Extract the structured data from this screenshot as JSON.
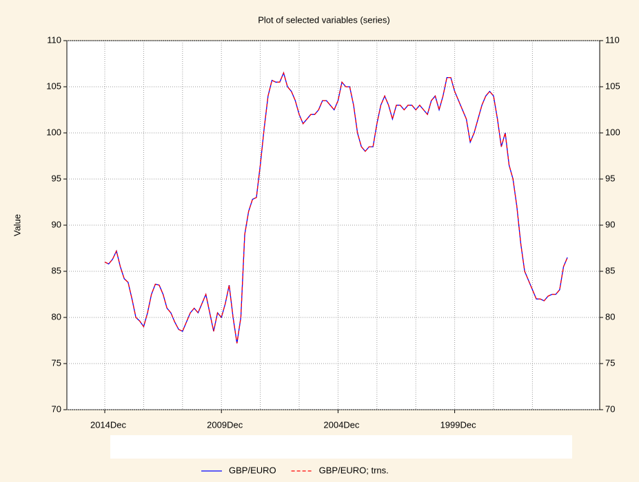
{
  "chart_data": {
    "type": "line",
    "title": "Plot of selected variables (series)",
    "ylabel": "Value",
    "categories": [
      "2014Dec",
      null,
      null,
      null,
      null,
      null,
      null,
      null,
      null,
      null,
      null,
      null,
      null,
      null,
      null,
      null,
      null,
      null,
      null,
      null,
      null,
      null,
      null,
      null,
      null,
      null,
      null,
      null,
      null,
      null,
      "2009Dec",
      null,
      null,
      null,
      null,
      null,
      null,
      null,
      null,
      null,
      null,
      null,
      null,
      null,
      null,
      null,
      null,
      null,
      null,
      null,
      null,
      null,
      null,
      null,
      null,
      null,
      null,
      null,
      null,
      null,
      "2004Dec",
      null,
      null,
      null,
      null,
      null,
      null,
      null,
      null,
      null,
      null,
      null,
      null,
      null,
      null,
      null,
      null,
      null,
      null,
      null,
      null,
      null,
      null,
      null,
      null,
      null,
      null,
      null,
      null,
      null,
      "1999Dec",
      null,
      null,
      null,
      null,
      null,
      null,
      null,
      null,
      null,
      null,
      null,
      null,
      null,
      null,
      null,
      null,
      null,
      null,
      null,
      null,
      null,
      null,
      null,
      null,
      null,
      null,
      null,
      null,
      null
    ],
    "series": [
      {
        "name": "GBP/EURO",
        "color": "#0000ff",
        "dash": false,
        "values": [
          86,
          85.8,
          86.3,
          87.2,
          85.5,
          84.2,
          83.8,
          82,
          80,
          79.6,
          79,
          80.5,
          82.5,
          83.6,
          83.5,
          82.5,
          81,
          80.5,
          79.5,
          78.7,
          78.5,
          79.5,
          80.5,
          81,
          80.5,
          81.5,
          82.5,
          80.5,
          78.5,
          80.5,
          80,
          81.5,
          83.5,
          80,
          77.2,
          80,
          89,
          91.5,
          92.8,
          93,
          96.5,
          100.5,
          104,
          105.7,
          105.5,
          105.5,
          106.5,
          105,
          104.5,
          103.5,
          102,
          101,
          101.5,
          102,
          102,
          102.5,
          103.5,
          103.5,
          103,
          102.5,
          103.5,
          105.5,
          105,
          105,
          103,
          100,
          98.5,
          98,
          98.5,
          98.5,
          101,
          103,
          104,
          103,
          101.5,
          103,
          103,
          102.5,
          103,
          103,
          102.5,
          103,
          102.5,
          102,
          103.5,
          104,
          102.5,
          104,
          106,
          106,
          104.5,
          103.5,
          102.5,
          101.5,
          99,
          100,
          101.5,
          103,
          104,
          104.5,
          104,
          101.5,
          98.5,
          100,
          96.5,
          95,
          92,
          88,
          85,
          84,
          83,
          82,
          82,
          81.8,
          82.3,
          82.5,
          82.5,
          83,
          85.5,
          86.5
        ]
      },
      {
        "name": "GBP/EURO; trns.",
        "color": "#ff0000",
        "dash": true,
        "values": [
          86,
          85.8,
          86.3,
          87.2,
          85.5,
          84.2,
          83.8,
          82,
          80,
          79.6,
          79,
          80.5,
          82.5,
          83.6,
          83.5,
          82.5,
          81,
          80.5,
          79.5,
          78.7,
          78.5,
          79.5,
          80.5,
          81,
          80.5,
          81.5,
          82.5,
          80.5,
          78.5,
          80.5,
          80,
          81.5,
          83.5,
          80,
          77.2,
          80,
          89,
          91.5,
          92.8,
          93,
          96.5,
          100.5,
          104,
          105.7,
          105.5,
          105.5,
          106.5,
          105,
          104.5,
          103.5,
          102,
          101,
          101.5,
          102,
          102,
          102.5,
          103.5,
          103.5,
          103,
          102.5,
          103.5,
          105.5,
          105,
          105,
          103,
          100,
          98.5,
          98,
          98.5,
          98.5,
          101,
          103,
          104,
          103,
          101.5,
          103,
          103,
          102.5,
          103,
          103,
          102.5,
          103,
          102.5,
          102,
          103.5,
          104,
          102.5,
          104,
          106,
          106,
          104.5,
          103.5,
          102.5,
          101.5,
          99,
          100,
          101.5,
          103,
          104,
          104.5,
          104,
          101.5,
          98.5,
          100,
          96.5,
          95,
          92,
          88,
          85,
          84,
          83,
          82,
          82,
          81.8,
          82.3,
          82.5,
          82.5,
          83,
          85.5,
          86.5
        ]
      }
    ],
    "ylim": [
      70,
      110
    ],
    "yticks": [
      70,
      75,
      80,
      85,
      90,
      95,
      100,
      105,
      110
    ],
    "grid": true,
    "legend": "bottom"
  }
}
